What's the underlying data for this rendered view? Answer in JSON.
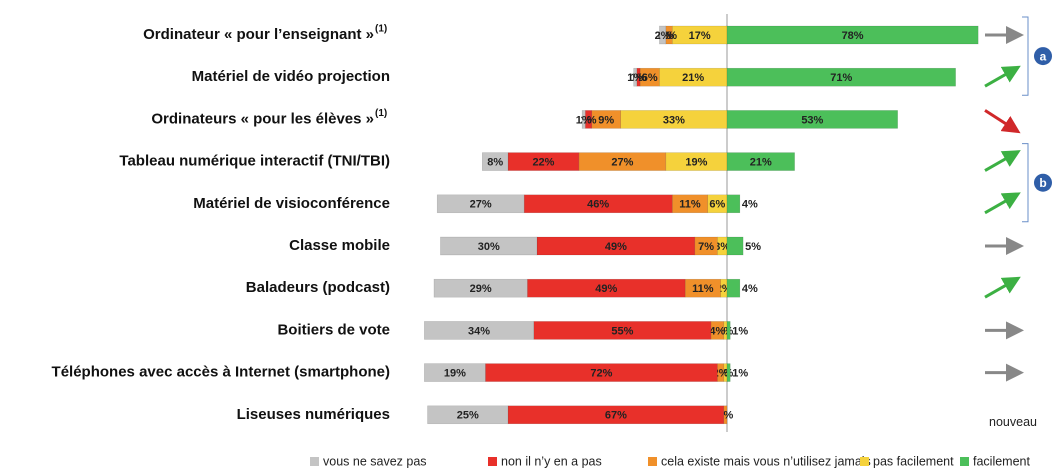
{
  "chart_data": {
    "type": "diverging_bar",
    "categories": [
      "Ordinateur « pour l’enseignant »",
      "Matériel de vidéo projection",
      "Ordinateurs « pour les élèves »",
      "Tableau numérique interactif (TNI/TBI)",
      "Matériel de visioconférence",
      "Classe mobile",
      "Baladeurs (podcast)",
      "Boitiers de vote",
      "Téléphones avec accès à Internet (smartphone)",
      "Liseuses numériques"
    ],
    "category_notes": [
      "(1)",
      null,
      "(1)",
      null,
      null,
      null,
      null,
      null,
      null,
      null
    ],
    "series": [
      {
        "name": "vous ne savez pas",
        "color": "#c4c4c4",
        "side": "left",
        "values": [
          2,
          1,
          1,
          8,
          27,
          30,
          29,
          34,
          19,
          25
        ],
        "value_labels": [
          "2%",
          "1%",
          "1%",
          "8%",
          "27%",
          "30%",
          "29%",
          "34%",
          "19%",
          "25%"
        ]
      },
      {
        "name": "non il n’y en a pas",
        "color": "#e8302a",
        "side": "left",
        "values": [
          0,
          1,
          2,
          22,
          46,
          49,
          49,
          55,
          72,
          67
        ],
        "value_labels": [
          "0%",
          "1%",
          "2%",
          "22%",
          "46%",
          "49%",
          "49%",
          "55%",
          "72%",
          "67%"
        ]
      },
      {
        "name": "cela existe mais vous n’utilisez jamais",
        "color": "#f0902a",
        "side": "left",
        "values": [
          2,
          6,
          9,
          27,
          11,
          7,
          11,
          4,
          2,
          1
        ],
        "value_labels": [
          "2%",
          "6%",
          "9%",
          "27%",
          "11%",
          "7%",
          "11%",
          "4%",
          "2%",
          "1%"
        ]
      },
      {
        "name": "pas facilement",
        "color": "#f5d23c",
        "side": "left",
        "values": [
          17,
          21,
          33,
          19,
          6,
          3,
          2,
          1,
          1,
          null
        ],
        "value_labels": [
          "17%",
          "21%",
          "33%",
          "19%",
          "6%",
          "3%",
          "2%",
          "1%",
          "1%",
          null
        ]
      },
      {
        "name": "facilement",
        "color": "#4cbf5a",
        "side": "right",
        "values": [
          78,
          71,
          53,
          21,
          4,
          5,
          4,
          1,
          1,
          null
        ],
        "value_labels": [
          "78%",
          "71%",
          "53%",
          "21%",
          "4%",
          "5%",
          "4%",
          "1%",
          "1%",
          null
        ]
      }
    ],
    "trends": [
      "flat",
      "up",
      "down",
      "up",
      "up",
      "flat",
      "up",
      "flat",
      "flat",
      "nouveau"
    ],
    "groups": [
      {
        "label": "a",
        "rows": [
          0,
          1
        ]
      },
      {
        "label": "b",
        "rows": [
          3,
          4
        ]
      }
    ]
  }
}
